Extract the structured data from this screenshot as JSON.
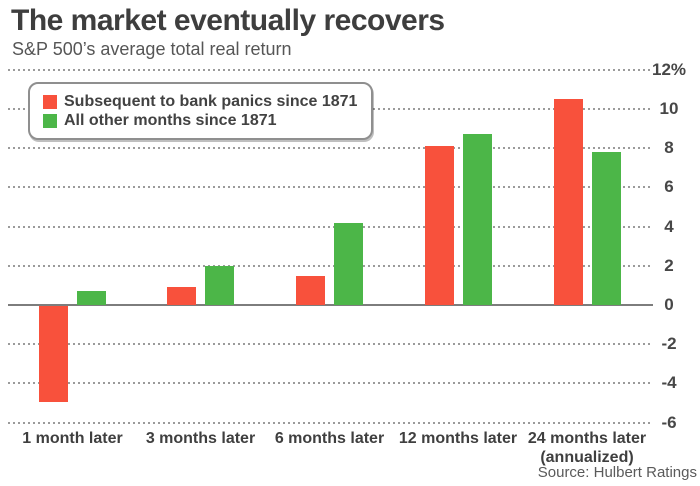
{
  "header": {
    "title": "The market eventually recovers",
    "subtitle": "S&P 500’s average total real return"
  },
  "legend": {
    "items": [
      {
        "label": "Subsequent to bank panics since 1871",
        "color": "#f8513c"
      },
      {
        "label": "All other months since 1871",
        "color": "#4cb648"
      }
    ]
  },
  "source": "Source: Hulbert Ratings",
  "colors": {
    "panics_red": "#f8513c",
    "other_green": "#4cb648",
    "gridline_gray": "#9b9b9b",
    "axis_gray": "#7d7d7d",
    "text_dark": "#3e3e3e"
  },
  "chart_data": {
    "type": "bar",
    "title": "The market eventually recovers",
    "subtitle": "S&P 500’s average total real return",
    "categories": [
      {
        "label": "1 month later",
        "sublabel": ""
      },
      {
        "label": "3 months later",
        "sublabel": ""
      },
      {
        "label": "6 months later",
        "sublabel": ""
      },
      {
        "label": "12 months later",
        "sublabel": ""
      },
      {
        "label": "24 months later",
        "sublabel": "(annualized)"
      }
    ],
    "series": [
      {
        "name": "Subsequent to bank panics since 1871",
        "color": "#f8513c",
        "values": [
          -4.9,
          0.9,
          1.5,
          8.1,
          10.5
        ]
      },
      {
        "name": "All other months since 1871",
        "color": "#4cb648",
        "values": [
          0.7,
          2.0,
          4.2,
          8.7,
          7.8
        ]
      }
    ],
    "ylabel": "",
    "xlabel": "",
    "y_axis": {
      "min": -6,
      "max": 12,
      "ticks": [
        12,
        10,
        8,
        6,
        4,
        2,
        0,
        -2,
        -4,
        -6
      ],
      "tick_labels": [
        "12%",
        "10",
        "8",
        "6",
        "4",
        "2",
        "0",
        "-2",
        "-4",
        "-6"
      ]
    },
    "grid": "horizontal-dotted",
    "legend_position": "top-left"
  }
}
